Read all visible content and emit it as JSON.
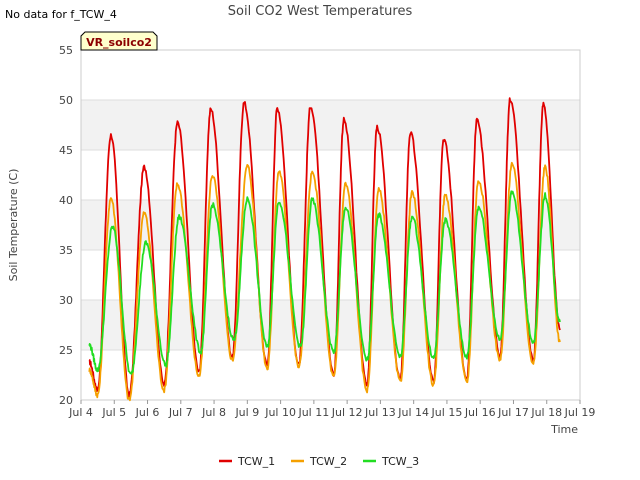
{
  "no_data_note": "No data for f_TCW_4",
  "chart_data": {
    "type": "line",
    "title": "Soil CO2 West Temperatures",
    "xlabel": "Time",
    "ylabel": "Soil Temperature (C)",
    "site_badge": "VR_soilco2",
    "xlim": [
      4,
      19
    ],
    "ylim": [
      20,
      55
    ],
    "x_ticks": [
      4,
      5,
      6,
      7,
      8,
      9,
      10,
      11,
      12,
      13,
      14,
      15,
      16,
      17,
      18,
      19
    ],
    "x_tick_labels": [
      "Jul 4",
      "Jul 5",
      "Jul 6",
      "Jul 7",
      "Jul 8",
      "Jul 9",
      "Jul 10",
      "Jul 11",
      "Jul 12",
      "Jul 13",
      "Jul 14",
      "Jul 15",
      "Jul 16",
      "Jul 17",
      "Jul 18",
      "Jul 19"
    ],
    "y_ticks": [
      20,
      25,
      30,
      35,
      40,
      45,
      50,
      55
    ],
    "y_tick_labels": [
      "20",
      "25",
      "30",
      "35",
      "40",
      "45",
      "50",
      "55"
    ],
    "grid": true,
    "legend": "bottom",
    "x_range": [
      4.25,
      18.4
    ],
    "series": [
      {
        "name": "TCW_1",
        "color": "#e00000",
        "points": [
          [
            4.25,
            23.8
          ],
          [
            4.5,
            21.0
          ],
          [
            4.9,
            46.5
          ],
          [
            5.45,
            20.5
          ],
          [
            5.9,
            43.3
          ],
          [
            6.5,
            21.5
          ],
          [
            6.9,
            47.7
          ],
          [
            7.55,
            22.8
          ],
          [
            7.9,
            49.1
          ],
          [
            8.55,
            24.2
          ],
          [
            8.9,
            49.7
          ],
          [
            9.6,
            23.5
          ],
          [
            9.9,
            49.2
          ],
          [
            10.55,
            23.5
          ],
          [
            10.9,
            49.4
          ],
          [
            11.6,
            22.5
          ],
          [
            11.9,
            48.0
          ],
          [
            12.6,
            21.5
          ],
          [
            12.9,
            47.3
          ],
          [
            13.6,
            22.0
          ],
          [
            13.9,
            46.7
          ],
          [
            14.6,
            21.8
          ],
          [
            14.9,
            46.1
          ],
          [
            15.6,
            22.0
          ],
          [
            15.9,
            48.0
          ],
          [
            16.6,
            24.5
          ],
          [
            16.9,
            50.1
          ],
          [
            17.6,
            24.0
          ],
          [
            17.9,
            49.6
          ],
          [
            18.4,
            27.0
          ]
        ]
      },
      {
        "name": "TCW_2",
        "color": "#f5a000",
        "points": [
          [
            4.25,
            23.0
          ],
          [
            4.5,
            20.5
          ],
          [
            4.9,
            40.2
          ],
          [
            5.45,
            20.0
          ],
          [
            5.9,
            38.7
          ],
          [
            6.5,
            21.0
          ],
          [
            6.9,
            41.6
          ],
          [
            7.55,
            22.4
          ],
          [
            7.95,
            42.5
          ],
          [
            8.55,
            24.0
          ],
          [
            9.0,
            43.4
          ],
          [
            9.6,
            23.2
          ],
          [
            9.95,
            42.9
          ],
          [
            10.55,
            23.3
          ],
          [
            10.95,
            42.7
          ],
          [
            11.6,
            22.3
          ],
          [
            11.95,
            41.6
          ],
          [
            12.6,
            21.0
          ],
          [
            12.95,
            41.0
          ],
          [
            13.6,
            21.8
          ],
          [
            13.95,
            40.7
          ],
          [
            14.6,
            21.5
          ],
          [
            14.95,
            40.5
          ],
          [
            15.6,
            21.8
          ],
          [
            15.95,
            42.0
          ],
          [
            16.6,
            24.0
          ],
          [
            16.95,
            43.6
          ],
          [
            17.6,
            23.7
          ],
          [
            17.95,
            43.3
          ],
          [
            18.4,
            25.8
          ]
        ]
      },
      {
        "name": "TCW_3",
        "color": "#22dd22",
        "points": [
          [
            4.25,
            25.5
          ],
          [
            4.5,
            23.0
          ],
          [
            4.95,
            37.3
          ],
          [
            5.5,
            22.5
          ],
          [
            5.95,
            35.7
          ],
          [
            6.55,
            23.5
          ],
          [
            6.95,
            38.3
          ],
          [
            7.6,
            24.8
          ],
          [
            7.95,
            39.5
          ],
          [
            8.6,
            26.0
          ],
          [
            9.0,
            40.1
          ],
          [
            9.6,
            25.3
          ],
          [
            9.95,
            39.9
          ],
          [
            10.6,
            25.3
          ],
          [
            10.95,
            40.0
          ],
          [
            11.6,
            24.8
          ],
          [
            11.95,
            39.2
          ],
          [
            12.6,
            24.0
          ],
          [
            12.95,
            38.5
          ],
          [
            13.6,
            24.3
          ],
          [
            13.95,
            38.3
          ],
          [
            14.6,
            24.2
          ],
          [
            14.95,
            38.0
          ],
          [
            15.6,
            24.3
          ],
          [
            15.95,
            39.3
          ],
          [
            16.6,
            26.0
          ],
          [
            16.95,
            40.7
          ],
          [
            17.6,
            25.8
          ],
          [
            17.95,
            40.5
          ],
          [
            18.4,
            27.8
          ]
        ]
      }
    ]
  }
}
